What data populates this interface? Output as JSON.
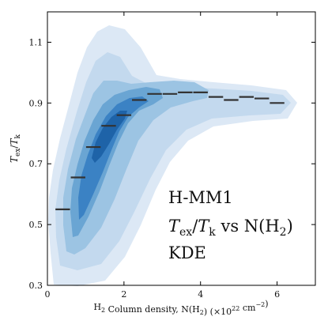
{
  "chart_data": {
    "type": "line",
    "title": "",
    "xlabel": "H<sub>2</sub> Column density, N(H<sub>2</sub>) (×10<sup>22</sup> cm<sup>−2</sup>)",
    "ylabel": "<tspan font-style='italic'>T</tspan><tspan font-size='9' dy='3'>ex</tspan><tspan dy='-3'>/</tspan><tspan font-style='italic'>T</tspan><tspan font-size='9' dy='3'>k</tspan>",
    "xlim": [
      0,
      7.0
    ],
    "ylim": [
      0.3,
      1.2
    ],
    "xticks": [
      0,
      2,
      4,
      6
    ],
    "yticks": [
      0.3,
      0.5,
      0.7,
      0.9,
      1.1
    ],
    "ytick_labels": [
      "0.3",
      "0.5",
      "0.7",
      "0.9",
      "1.1"
    ],
    "grid": false,
    "annotation_lines": [
      "H-MM1",
      "<tspan font-style='italic'>T</tspan><tspan font-size='14' dy='5'>ex</tspan><tspan dy='-5'>/</tspan><tspan font-style='italic'>T</tspan><tspan font-size='14' dy='5'>k</tspan><tspan dy='-5'> vs N(H</tspan><tspan font-size='14' dy='5'>2</tspan><tspan dy='-5'>)</tspan>",
      "KDE"
    ],
    "kde_colors": [
      "#dce8f5",
      "#c3d9ee",
      "#9cc4e3",
      "#6aa5d3",
      "#3b82c4",
      "#1e63a8"
    ],
    "binned_medians": {
      "color": "#333333",
      "x": [
        0.4,
        0.8,
        1.2,
        1.6,
        2.0,
        2.4,
        2.8,
        3.2,
        3.6,
        4.0,
        4.4,
        4.8,
        5.2,
        5.6,
        6.0
      ],
      "y": [
        0.55,
        0.655,
        0.755,
        0.825,
        0.86,
        0.91,
        0.93,
        0.93,
        0.935,
        0.935,
        0.92,
        0.91,
        0.92,
        0.915,
        0.9
      ],
      "halfwidth": 0.19
    }
  }
}
